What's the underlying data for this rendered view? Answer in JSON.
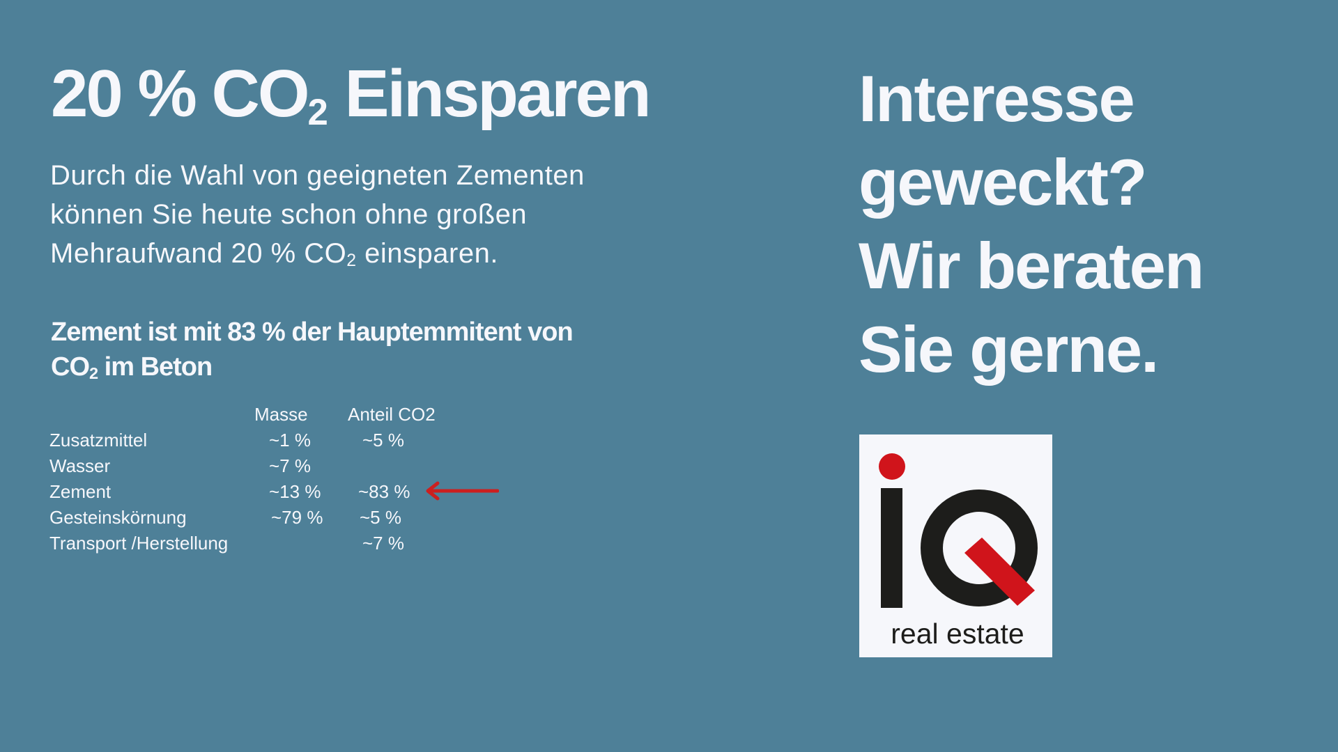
{
  "title": {
    "pre": "20 % CO",
    "sub": "2",
    "post": " Einsparen"
  },
  "intro": {
    "line1": "Durch die Wahl von geeigneten Zementen",
    "line2": "können Sie heute schon ohne großen",
    "line3_pre": "Mehraufwand 20 % CO",
    "line3_sub": "2",
    "line3_post": " einsparen."
  },
  "subhead": {
    "line1": "Zement ist mit 83 % der Hauptemmitent von",
    "line2_pre": "CO",
    "line2_sub": "2",
    "line2_post": " im Beton"
  },
  "table": {
    "headers": {
      "masse": "Masse",
      "anteil": "Anteil CO2"
    },
    "rows": [
      {
        "label": "Zusatzmittel",
        "masse": "~1 %",
        "anteil": "~5 %"
      },
      {
        "label": "Wasser",
        "masse": "~7 %",
        "anteil": ""
      },
      {
        "label": "Zement",
        "masse": "~13 %",
        "anteil": "~83 %"
      },
      {
        "label": "Gesteinskörnung",
        "masse": "~79 %",
        "anteil": "~5 %"
      },
      {
        "label": "Transport /Herstellung",
        "masse": "",
        "anteil": "~7 %"
      }
    ],
    "highlight_color": "#cc1f1f"
  },
  "cta": {
    "line1": "Interesse",
    "line2": "geweckt?",
    "line3": "Wir beraten",
    "line4": "Sie gerne."
  },
  "logo": {
    "text": "real estate",
    "icon": "iq-logo-mark",
    "colors": {
      "dark": "#1d1d1b",
      "red": "#d0141b",
      "background": "#f6f7fb"
    }
  },
  "colors": {
    "background": "#4e8098",
    "text": "#f6f7fb"
  }
}
